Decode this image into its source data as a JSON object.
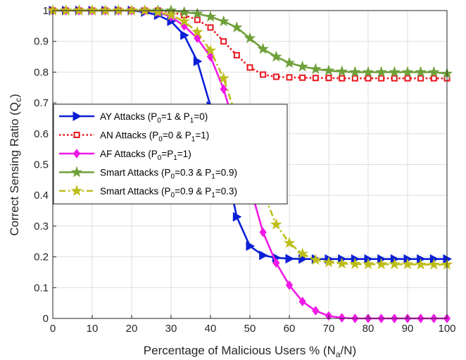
{
  "chart_data": {
    "type": "line",
    "xlabel": "Percentage of Malicious Users  % (N_a/N)",
    "ylabel": "Correct Sensing Ratio (Q_c)",
    "xlim": [
      0,
      100
    ],
    "ylim": [
      0,
      1
    ],
    "xticks": [
      0,
      10,
      20,
      30,
      40,
      50,
      60,
      70,
      80,
      90,
      100
    ],
    "yticks": [
      0,
      0.1,
      0.2,
      0.3,
      0.4,
      0.5,
      0.6,
      0.7,
      0.8,
      0.9,
      1
    ],
    "grid": true,
    "legend_position": "middle-left",
    "x": [
      0,
      3.33,
      6.67,
      10,
      13.33,
      16.67,
      20,
      23.33,
      26.67,
      30,
      33.33,
      36.67,
      40,
      43.33,
      46.67,
      50,
      53.33,
      56.67,
      60,
      63.33,
      66.67,
      70,
      73.33,
      76.67,
      80,
      83.33,
      86.67,
      90,
      93.33,
      96.67,
      100
    ],
    "series": [
      {
        "name": "AY Attacks  (P0=1 & P1=0)",
        "legend_parts": [
          [
            "AY Attacks  (P",
            ""
          ],
          [
            "0",
            "sub"
          ],
          [
            "=1 & P",
            ""
          ],
          [
            "1",
            "sub"
          ],
          [
            "=0)",
            ""
          ]
        ],
        "color": "#0b1fd6",
        "dash": "solid",
        "marker": "triangle-right",
        "values": [
          1,
          1,
          1,
          1,
          1,
          1,
          1,
          0.995,
          0.985,
          0.965,
          0.92,
          0.835,
          0.69,
          0.53,
          0.33,
          0.235,
          0.205,
          0.197,
          0.194,
          0.193,
          0.193,
          0.193,
          0.193,
          0.193,
          0.193,
          0.193,
          0.193,
          0.193,
          0.193,
          0.193,
          0.193
        ]
      },
      {
        "name": "AN Attacks  (P0=0 & P1=1)",
        "legend_parts": [
          [
            "AN Attacks  (P",
            ""
          ],
          [
            "0",
            "sub"
          ],
          [
            "=0 & P",
            ""
          ],
          [
            "1",
            "sub"
          ],
          [
            "=1)",
            ""
          ]
        ],
        "color": "#e8161e",
        "dash": "dotted",
        "marker": "square",
        "values": [
          1,
          1,
          1,
          1,
          1,
          1,
          1,
          1,
          1,
          0.995,
          0.985,
          0.97,
          0.945,
          0.9,
          0.855,
          0.815,
          0.792,
          0.785,
          0.783,
          0.782,
          0.781,
          0.781,
          0.78,
          0.78,
          0.78,
          0.78,
          0.78,
          0.78,
          0.78,
          0.78,
          0.78
        ]
      },
      {
        "name": "AF Attacks  (P0=P1=1)",
        "legend_parts": [
          [
            "AF Attacks  (P",
            ""
          ],
          [
            "0",
            "sub"
          ],
          [
            "=P",
            ""
          ],
          [
            "1",
            "sub"
          ],
          [
            "=1)",
            ""
          ]
        ],
        "color": "#f019e6",
        "dash": "solid",
        "marker": "diamond",
        "values": [
          1,
          1,
          1,
          1,
          1,
          1,
          1,
          1,
          0.995,
          0.98,
          0.95,
          0.91,
          0.85,
          0.745,
          0.6,
          0.43,
          0.28,
          0.18,
          0.108,
          0.055,
          0.025,
          0.008,
          0.002,
          0,
          0,
          0,
          0,
          0,
          0,
          0,
          0
        ]
      },
      {
        "name": "Smart Attacks  (P0=0.3 & P1=0.9)",
        "legend_parts": [
          [
            "Smart Attacks  (P",
            ""
          ],
          [
            "0",
            "sub"
          ],
          [
            "=0.3 & P",
            ""
          ],
          [
            "1",
            "sub"
          ],
          [
            "=0.9)",
            ""
          ]
        ],
        "color": "#6fa03a",
        "dash": "solid",
        "marker": "star",
        "values": [
          1,
          1,
          1,
          1,
          1,
          1,
          1,
          1,
          1,
          1,
          0.995,
          0.99,
          0.98,
          0.965,
          0.945,
          0.91,
          0.875,
          0.85,
          0.83,
          0.818,
          0.81,
          0.805,
          0.802,
          0.8,
          0.8,
          0.8,
          0.8,
          0.8,
          0.8,
          0.8,
          0.795
        ]
      },
      {
        "name": "Smart Attacks  (P0=0.9 & P1=0.3)",
        "legend_parts": [
          [
            "Smart Attacks  (P",
            ""
          ],
          [
            "0",
            "sub"
          ],
          [
            "=0.9 & P",
            ""
          ],
          [
            "1",
            "sub"
          ],
          [
            "=0.3)",
            ""
          ]
        ],
        "color": "#bdbd19",
        "dash": "dashdot",
        "marker": "star",
        "values": [
          1,
          1,
          1,
          1,
          1,
          1,
          1,
          1,
          0.995,
          0.985,
          0.965,
          0.93,
          0.87,
          0.78,
          0.65,
          0.53,
          0.41,
          0.305,
          0.245,
          0.21,
          0.19,
          0.182,
          0.178,
          0.177,
          0.176,
          0.176,
          0.176,
          0.176,
          0.175,
          0.175,
          0.175
        ]
      }
    ]
  }
}
